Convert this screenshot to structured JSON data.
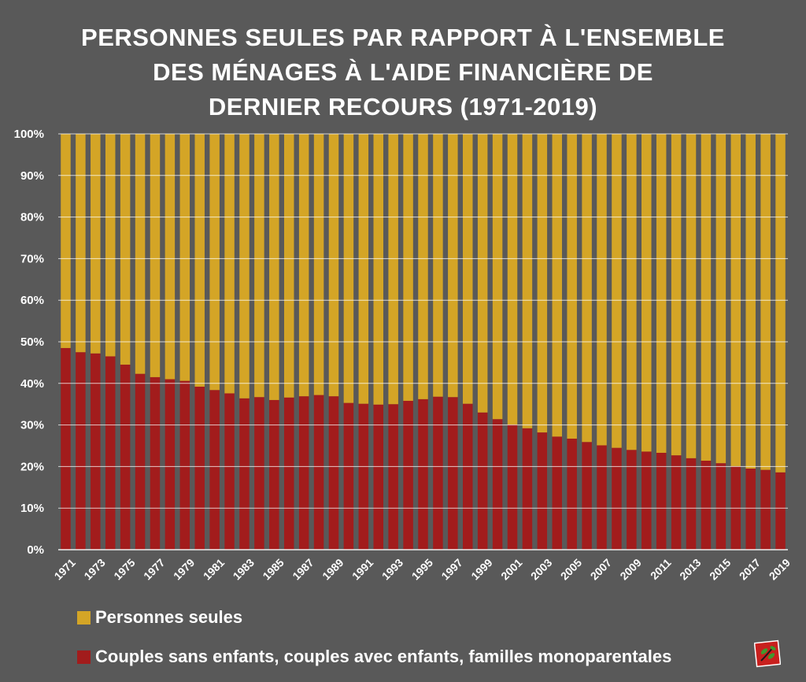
{
  "title_lines": [
    "PERSONNES SEULES PAR RAPPORT À L'ENSEMBLE",
    "DES MÉNAGES À L'AIDE FINANCIÈRE DE",
    "DERNIER RECOURS (1971-2019)"
  ],
  "colors": {
    "background": "#595959",
    "personnes_seules": "#D4A526",
    "couples": "#A21C1C",
    "gridline": "#FFFFFF"
  },
  "legend": [
    {
      "label": "Personnes seules",
      "color": "#D4A526"
    },
    {
      "label": "Couples sans enfants, couples avec enfants, familles monoparentales",
      "color": "#A21C1C"
    }
  ],
  "logo": {
    "icon": "leaf-logo-icon"
  },
  "chart_data": {
    "type": "bar",
    "stacked": true,
    "normalized_percent": true,
    "title": "PERSONNES SEULES PAR RAPPORT À L'ENSEMBLE DES MÉNAGES À L'AIDE FINANCIÈRE DE DERNIER RECOURS (1971-2019)",
    "categories": [
      1971,
      1972,
      1973,
      1974,
      1975,
      1976,
      1977,
      1978,
      1979,
      1980,
      1981,
      1982,
      1983,
      1984,
      1985,
      1986,
      1987,
      1988,
      1989,
      1990,
      1991,
      1992,
      1993,
      1994,
      1995,
      1996,
      1997,
      1998,
      1999,
      2000,
      2001,
      2002,
      2003,
      2004,
      2005,
      2006,
      2007,
      2008,
      2009,
      2010,
      2011,
      2012,
      2013,
      2014,
      2015,
      2016,
      2017,
      2018,
      2019
    ],
    "x_tick_labels": [
      "1971",
      "1973",
      "1975",
      "1977",
      "1979",
      "1981",
      "1983",
      "1985",
      "1987",
      "1989",
      "1991",
      "1993",
      "1995",
      "1997",
      "1999",
      "2001",
      "2003",
      "2005",
      "2007",
      "2009",
      "2011",
      "2013",
      "2015",
      "2017",
      "2019"
    ],
    "y_tick_labels": [
      "0%",
      "10%",
      "20%",
      "30%",
      "40%",
      "50%",
      "60%",
      "70%",
      "80%",
      "90%",
      "100%"
    ],
    "ylim": [
      0,
      100
    ],
    "grid": true,
    "legend_position": "bottom",
    "series": [
      {
        "name": "Couples sans enfants, couples avec enfants, familles monoparentales",
        "color": "#A21C1C",
        "values": [
          48.5,
          47.5,
          47.2,
          46.5,
          44.5,
          42.3,
          41.5,
          41.0,
          40.6,
          39.2,
          38.4,
          37.6,
          36.4,
          36.7,
          36.0,
          36.6,
          36.9,
          37.2,
          36.9,
          35.3,
          35.1,
          34.9,
          35.0,
          35.8,
          36.2,
          36.8,
          36.7,
          35.1,
          33.0,
          31.4,
          30.1,
          29.2,
          28.2,
          27.2,
          26.7,
          25.9,
          25.1,
          24.5,
          24.0,
          23.6,
          23.3,
          22.7,
          22.0,
          21.4,
          20.8,
          20.1,
          19.5,
          19.2,
          18.6
        ]
      },
      {
        "name": "Personnes seules",
        "color": "#D4A526",
        "values": [
          51.5,
          52.5,
          52.8,
          53.5,
          55.5,
          57.7,
          58.5,
          59.0,
          59.4,
          60.8,
          61.6,
          62.4,
          63.6,
          63.3,
          64.0,
          63.4,
          63.1,
          62.8,
          63.1,
          64.7,
          64.9,
          65.1,
          65.0,
          64.2,
          63.8,
          63.2,
          63.3,
          64.9,
          67.0,
          68.6,
          69.9,
          70.8,
          71.8,
          72.8,
          73.3,
          74.1,
          74.9,
          75.5,
          76.0,
          76.4,
          76.7,
          77.3,
          78.0,
          78.6,
          79.2,
          79.9,
          80.5,
          80.8,
          81.4
        ]
      }
    ]
  }
}
